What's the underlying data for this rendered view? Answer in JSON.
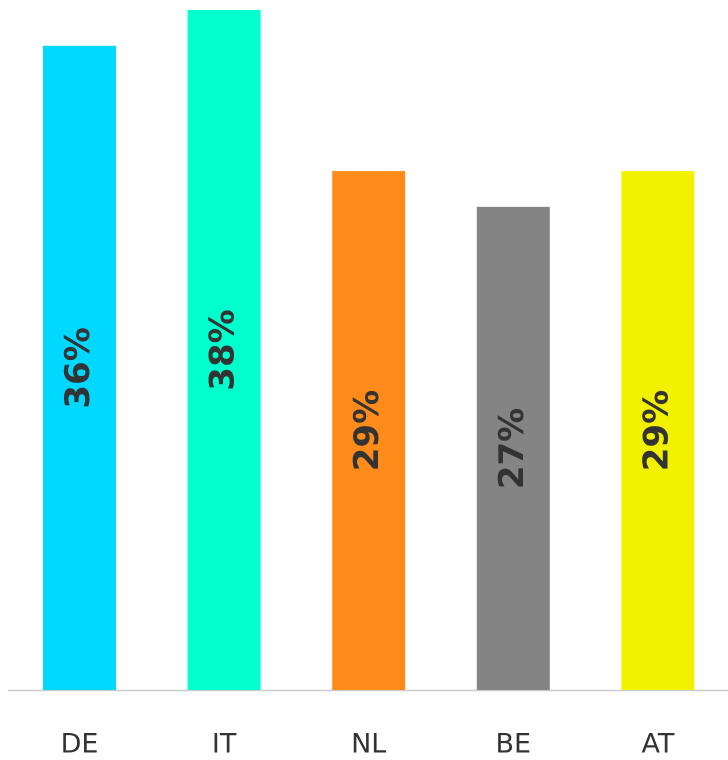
{
  "chart_data": {
    "type": "bar",
    "categories": [
      "DE",
      "IT",
      "NL",
      "BE",
      "AT"
    ],
    "values": [
      36,
      38,
      29,
      27,
      29
    ],
    "value_labels": [
      "36%",
      "38%",
      "29%",
      "27%",
      "29%"
    ],
    "colors": [
      "#00d8ff",
      "#00ffcc",
      "#ff8c1a",
      "#848484",
      "#f2f200"
    ]
  }
}
